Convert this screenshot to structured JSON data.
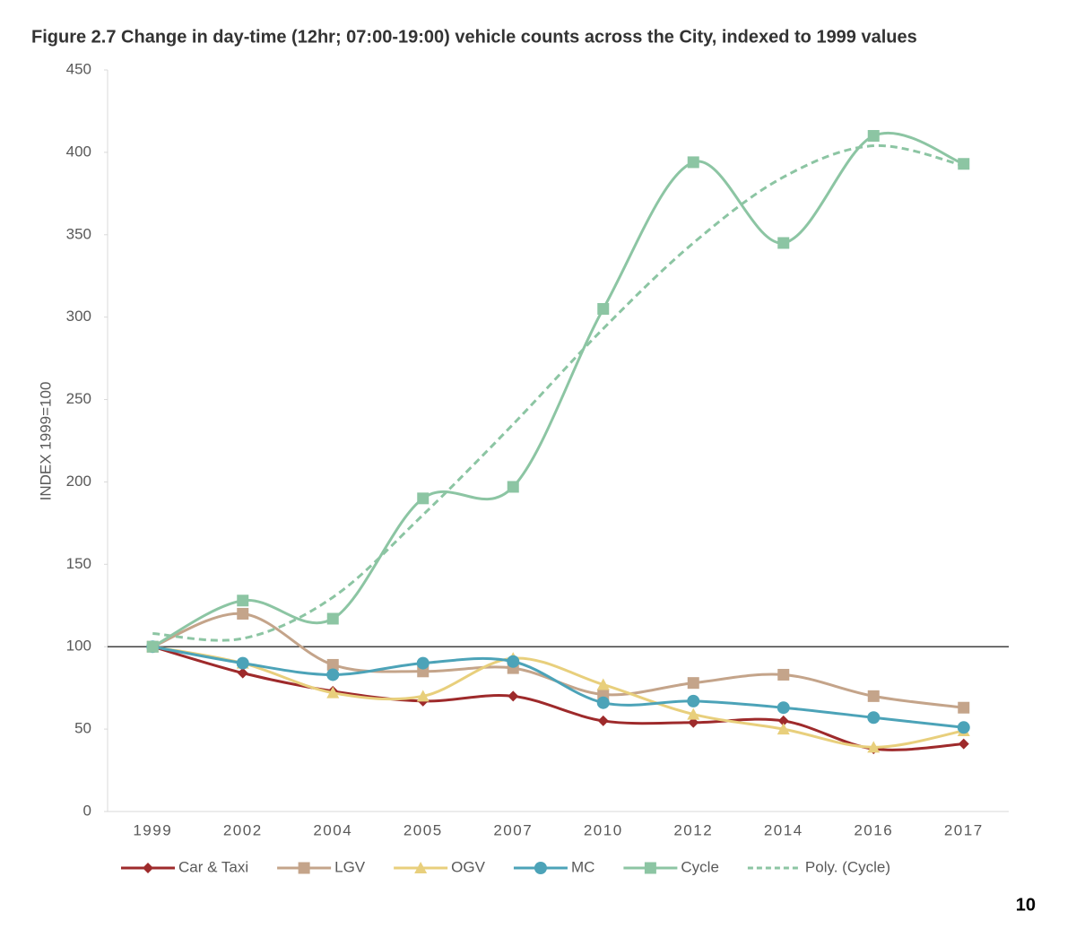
{
  "chart_data": {
    "type": "line",
    "title": "Figure 2.7 Change in day-time (12hr; 07:00-19:00) vehicle counts across the City, indexed to 1999 values",
    "y_label": "INDEX 1999=100",
    "categories": [
      "1999",
      "2002",
      "2004",
      "2005",
      "2007",
      "2010",
      "2012",
      "2014",
      "2016",
      "2017"
    ],
    "ylim": [
      0,
      450
    ],
    "yticks": [
      0,
      50,
      100,
      150,
      200,
      250,
      300,
      350,
      400,
      450
    ],
    "reference_line": 100,
    "series": [
      {
        "name": "Car & Taxi",
        "color": "#9e2a2b",
        "marker": "diamond",
        "values": [
          100,
          84,
          73,
          67,
          70,
          55,
          54,
          55,
          38,
          41
        ]
      },
      {
        "name": "LGV",
        "color": "#c4a48a",
        "marker": "square",
        "values": [
          100,
          120,
          89,
          85,
          87,
          71,
          78,
          83,
          70,
          63
        ]
      },
      {
        "name": "OGV",
        "color": "#e8cf7c",
        "marker": "triangle",
        "values": [
          100,
          90,
          72,
          70,
          93,
          77,
          59,
          50,
          39,
          49
        ]
      },
      {
        "name": "MC",
        "color": "#4ca3b8",
        "marker": "circle",
        "values": [
          100,
          90,
          83,
          90,
          91,
          66,
          67,
          63,
          57,
          51
        ]
      },
      {
        "name": "Cycle",
        "color": "#8cc5a3",
        "marker": "square",
        "values": [
          100,
          128,
          117,
          190,
          197,
          305,
          394,
          345,
          410,
          393
        ]
      },
      {
        "name": "Poly. (Cycle)",
        "color": "#8cc5a3",
        "marker": "none",
        "dashed": true,
        "values": [
          108,
          105,
          130,
          180,
          235,
          293,
          345,
          385,
          404,
          392
        ]
      }
    ],
    "page_number": "10"
  }
}
